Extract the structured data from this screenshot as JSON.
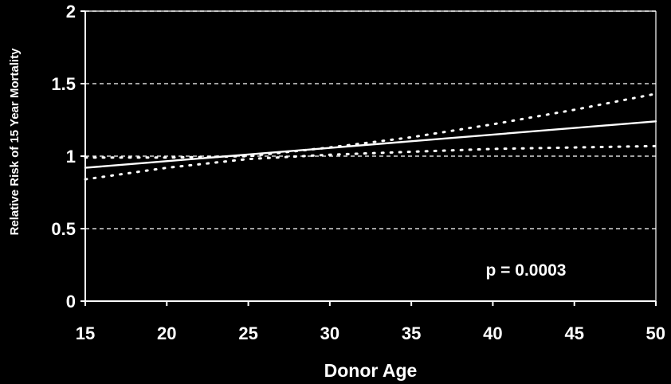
{
  "chart_data": {
    "type": "line",
    "title": "",
    "xlabel": "Donor Age",
    "ylabel": "Relative Risk of 15 Year Mortality",
    "xlim": [
      15,
      50
    ],
    "ylim": [
      0,
      2
    ],
    "x_ticks": [
      15,
      20,
      25,
      30,
      35,
      40,
      45,
      50
    ],
    "y_ticks": [
      0,
      0.5,
      1,
      1.5,
      2
    ],
    "y_tick_labels": [
      "0",
      "0.5",
      "1",
      "1.5",
      "2"
    ],
    "grid": "horizontal-dashed",
    "reference_line": 1,
    "annotation": "p = 0.0003",
    "colors": {
      "background": "#000000",
      "foreground": "#ffffff",
      "grid": "#d8d8d8"
    },
    "series": [
      {
        "role": "estimate",
        "style": "solid",
        "x": [
          15,
          50
        ],
        "y": [
          0.92,
          1.24
        ]
      },
      {
        "role": "upper-ci",
        "style": "dotted",
        "x": [
          15,
          20,
          25,
          30,
          35,
          40,
          45,
          50
        ],
        "y": [
          0.99,
          0.99,
          1.0,
          1.06,
          1.13,
          1.22,
          1.32,
          1.43
        ]
      },
      {
        "role": "lower-ci",
        "style": "dotted",
        "x": [
          15,
          20,
          25,
          30,
          35,
          40,
          45,
          50
        ],
        "y": [
          0.84,
          0.92,
          0.98,
          1.01,
          1.03,
          1.05,
          1.06,
          1.07
        ]
      }
    ]
  }
}
